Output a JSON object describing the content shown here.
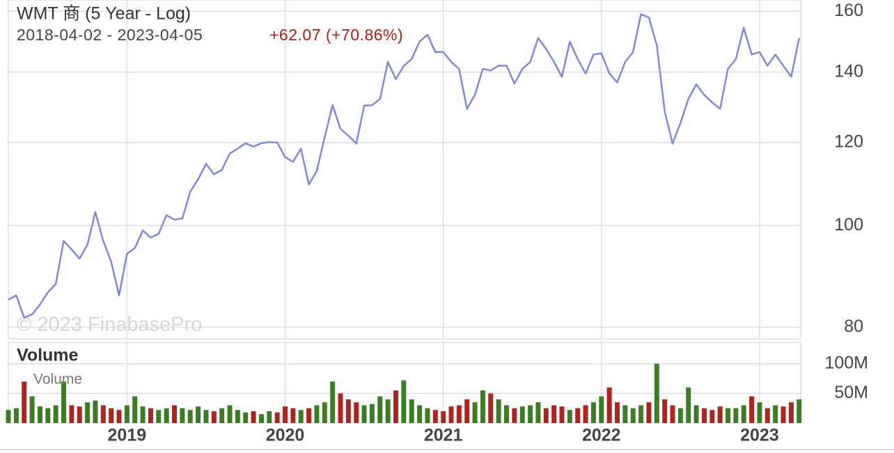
{
  "chart_data": [
    {
      "type": "line",
      "title": "WMT 商 (5 Year - Log)",
      "subtitle": "2018-04-02 - 2023-04-05",
      "change": "+62.07 (+70.86%)",
      "watermark": "© 2023 FinabasePro",
      "log": true,
      "grid": true,
      "color": "#8088d8",
      "xlim": [
        2018.25,
        2023.26
      ],
      "xticks": [
        2019,
        2020,
        2021,
        2022,
        2023
      ],
      "ylim": [
        78,
        164
      ],
      "yticks": [
        80,
        100,
        120,
        140,
        160
      ],
      "x": [
        2018.25,
        2018.3,
        2018.35,
        2018.4,
        2018.45,
        2018.5,
        2018.55,
        2018.6,
        2018.65,
        2018.7,
        2018.75,
        2018.8,
        2018.85,
        2018.9,
        2018.95,
        2019,
        2019.05,
        2019.1,
        2019.15,
        2019.2,
        2019.25,
        2019.3,
        2019.35,
        2019.4,
        2019.45,
        2019.5,
        2019.55,
        2019.6,
        2019.65,
        2019.7,
        2019.75,
        2019.8,
        2019.85,
        2019.9,
        2019.95,
        2020,
        2020.05,
        2020.1,
        2020.15,
        2020.2,
        2020.25,
        2020.3,
        2020.35,
        2020.4,
        2020.45,
        2020.5,
        2020.55,
        2020.6,
        2020.65,
        2020.7,
        2020.75,
        2020.8,
        2020.85,
        2020.9,
        2020.95,
        2021,
        2021.05,
        2021.1,
        2021.15,
        2021.2,
        2021.25,
        2021.3,
        2021.35,
        2021.4,
        2021.45,
        2021.5,
        2021.55,
        2021.6,
        2021.65,
        2021.7,
        2021.75,
        2021.8,
        2021.85,
        2021.9,
        2021.95,
        2022,
        2022.05,
        2022.1,
        2022.15,
        2022.2,
        2022.25,
        2022.3,
        2022.35,
        2022.4,
        2022.45,
        2022.5,
        2022.55,
        2022.6,
        2022.65,
        2022.7,
        2022.75,
        2022.8,
        2022.85,
        2022.9,
        2022.95,
        2023,
        2023.05,
        2023.1,
        2023.15,
        2023.2,
        2023.25
      ],
      "values": [
        85,
        85.8,
        81.7,
        82.3,
        84.1,
        86.4,
        88,
        96.7,
        94.9,
        93,
        95.9,
        103,
        96.7,
        92.4,
        85.8,
        94,
        95.2,
        98.9,
        97.4,
        98.2,
        102.3,
        101.3,
        101.6,
        107.7,
        110.7,
        114.5,
        111.9,
        113,
        117.1,
        118.4,
        119.8,
        118.9,
        119.8,
        120.1,
        120,
        116.2,
        115,
        118.4,
        109.4,
        112.7,
        121.4,
        130.2,
        123.6,
        121.8,
        119.7,
        130.1,
        130.2,
        132,
        143.2,
        137.9,
        141.9,
        144.1,
        149.7,
        152,
        146.3,
        146.3,
        143.2,
        141,
        129.2,
        133.2,
        141,
        140.5,
        142,
        142,
        136.5,
        141,
        143.2,
        150.9,
        147.3,
        143.2,
        138.6,
        149.7,
        144.1,
        139.6,
        145.5,
        145.9,
        139.6,
        136.9,
        143.2,
        146.3,
        159,
        157.8,
        148.6,
        128.4,
        119.7,
        125.3,
        132,
        136.3,
        133.2,
        131,
        129.2,
        141,
        144.1,
        154.3,
        145.5,
        146.3,
        142,
        145.5,
        142,
        138.6,
        150.9
      ]
    },
    {
      "type": "bar",
      "title": "Volume",
      "grid": true,
      "xlim": [
        2018.25,
        2023.26
      ],
      "xticks": [
        2019,
        2020,
        2021,
        2022,
        2023
      ],
      "ylim": [
        0,
        136
      ],
      "yticks": [
        {
          "value": 50,
          "label": "50M"
        },
        {
          "value": 100,
          "label": "100M"
        }
      ],
      "x": [
        2018.25,
        2018.3,
        2018.35,
        2018.4,
        2018.45,
        2018.5,
        2018.55,
        2018.6,
        2018.65,
        2018.7,
        2018.75,
        2018.8,
        2018.85,
        2018.9,
        2018.95,
        2019,
        2019.05,
        2019.1,
        2019.15,
        2019.2,
        2019.25,
        2019.3,
        2019.35,
        2019.4,
        2019.45,
        2019.5,
        2019.55,
        2019.6,
        2019.65,
        2019.7,
        2019.75,
        2019.8,
        2019.85,
        2019.9,
        2019.95,
        2020,
        2020.05,
        2020.1,
        2020.15,
        2020.2,
        2020.25,
        2020.3,
        2020.35,
        2020.4,
        2020.45,
        2020.5,
        2020.55,
        2020.6,
        2020.65,
        2020.7,
        2020.75,
        2020.8,
        2020.85,
        2020.9,
        2020.95,
        2021,
        2021.05,
        2021.1,
        2021.15,
        2021.2,
        2021.25,
        2021.3,
        2021.35,
        2021.4,
        2021.45,
        2021.5,
        2021.55,
        2021.6,
        2021.65,
        2021.7,
        2021.75,
        2021.8,
        2021.85,
        2021.9,
        2021.95,
        2022,
        2022.05,
        2022.1,
        2022.15,
        2022.2,
        2022.25,
        2022.3,
        2022.35,
        2022.4,
        2022.45,
        2022.5,
        2022.55,
        2022.6,
        2022.65,
        2022.7,
        2022.75,
        2022.8,
        2022.85,
        2022.9,
        2022.95,
        2023,
        2023.05,
        2023.1,
        2023.15,
        2023.2,
        2023.25
      ],
      "series": [
        {
          "name": "Volume",
          "values": [
            22,
            25,
            70,
            45,
            28,
            25,
            30,
            70,
            30,
            28,
            35,
            38,
            30,
            25,
            22,
            30,
            45,
            28,
            25,
            22,
            25,
            30,
            25,
            22,
            28,
            22,
            20,
            25,
            30,
            22,
            18,
            20,
            15,
            20,
            18,
            28,
            25,
            22,
            25,
            30,
            35,
            70,
            50,
            40,
            35,
            30,
            32,
            45,
            40,
            55,
            72,
            40,
            30,
            25,
            22,
            20,
            28,
            30,
            40,
            35,
            55,
            50,
            40,
            30,
            25,
            28,
            30,
            35,
            25,
            30,
            28,
            22,
            25,
            30,
            35,
            45,
            60,
            35,
            30,
            25,
            30,
            35,
            100,
            40,
            30,
            25,
            60,
            30,
            25,
            22,
            28,
            25,
            25,
            30,
            45,
            35,
            25,
            30,
            28,
            35,
            40
          ],
          "colors": [
            "#3b7d23",
            "#3b7d23",
            "#b0231e",
            "#3b7d23",
            "#3b7d23",
            "#3b7d23",
            "#3b7d23",
            "#3b7d23",
            "#b0231e",
            "#b0231e",
            "#3b7d23",
            "#3b7d23",
            "#b0231e",
            "#b0231e",
            "#b0231e",
            "#3b7d23",
            "#3b7d23",
            "#3b7d23",
            "#b0231e",
            "#3b7d23",
            "#3b7d23",
            "#b0231e",
            "#3b7d23",
            "#3b7d23",
            "#3b7d23",
            "#3b7d23",
            "#b0231e",
            "#3b7d23",
            "#3b7d23",
            "#3b7d23",
            "#3b7d23",
            "#b0231e",
            "#3b7d23",
            "#3b7d23",
            "#b0231e",
            "#b0231e",
            "#b0231e",
            "#3b7d23",
            "#b0231e",
            "#3b7d23",
            "#3b7d23",
            "#3b7d23",
            "#b0231e",
            "#b0231e",
            "#b0231e",
            "#3b7d23",
            "#3b7d23",
            "#3b7d23",
            "#3b7d23",
            "#b0231e",
            "#3b7d23",
            "#3b7d23",
            "#3b7d23",
            "#3b7d23",
            "#b0231e",
            "#b0231e",
            "#b0231e",
            "#b0231e",
            "#b0231e",
            "#3b7d23",
            "#3b7d23",
            "#b0231e",
            "#3b7d23",
            "#3b7d23",
            "#b0231e",
            "#3b7d23",
            "#3b7d23",
            "#3b7d23",
            "#b0231e",
            "#b0231e",
            "#b0231e",
            "#3b7d23",
            "#b0231e",
            "#b0231e",
            "#3b7d23",
            "#3b7d23",
            "#b0231e",
            "#b0231e",
            "#3b7d23",
            "#3b7d23",
            "#3b7d23",
            "#b0231e",
            "#3b7d23",
            "#b0231e",
            "#b0231e",
            "#3b7d23",
            "#3b7d23",
            "#3b7d23",
            "#b0231e",
            "#b0231e",
            "#b0231e",
            "#3b7d23",
            "#3b7d23",
            "#3b7d23",
            "#b0231e",
            "#3b7d23",
            "#b0231e",
            "#3b7d23",
            "#b0231e",
            "#b0231e",
            "#3b7d23"
          ]
        }
      ]
    }
  ]
}
